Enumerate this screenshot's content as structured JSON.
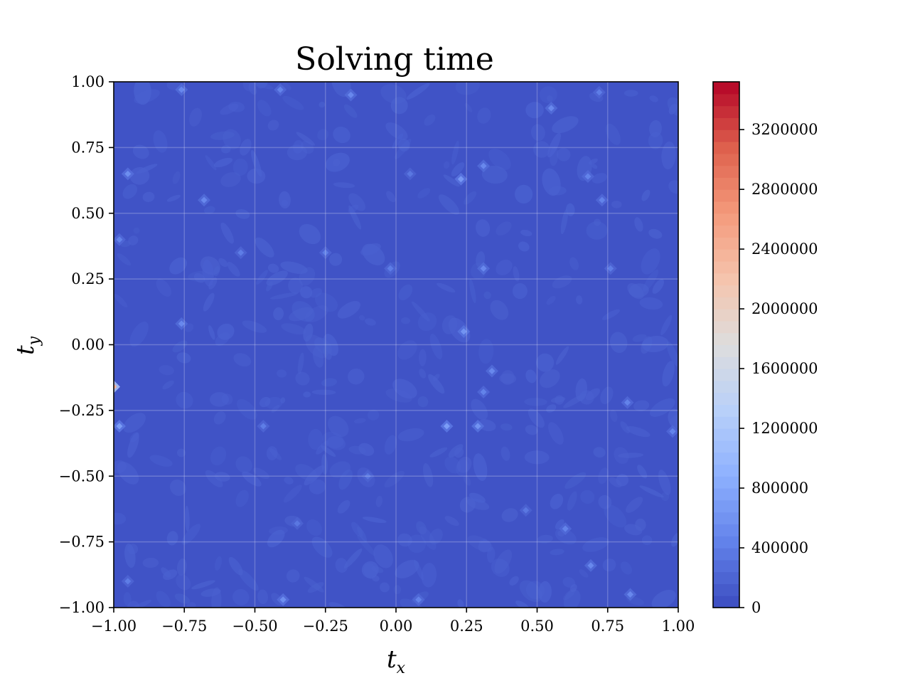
{
  "chart_data": {
    "type": "heatmap",
    "title": "Solving time",
    "xlabel": {
      "base": "t",
      "sub": "x"
    },
    "ylabel": {
      "base": "t",
      "sub": "y"
    },
    "xlim": [
      -1.0,
      1.0
    ],
    "ylim": [
      -1.0,
      1.0
    ],
    "x_ticks": [
      -1.0,
      -0.75,
      -0.5,
      -0.25,
      0.0,
      0.25,
      0.5,
      0.75,
      1.0
    ],
    "x_tick_labels": [
      "−1.00",
      "−0.75",
      "−0.50",
      "−0.25",
      "0.00",
      "0.25",
      "0.50",
      "0.75",
      "1.00"
    ],
    "y_ticks": [
      -1.0,
      -0.75,
      -0.5,
      -0.25,
      0.0,
      0.25,
      0.5,
      0.75,
      1.0
    ],
    "y_tick_labels": [
      "−1.00",
      "−0.75",
      "−0.50",
      "−0.25",
      "0.00",
      "0.25",
      "0.50",
      "0.75",
      "1.00"
    ],
    "grid": true,
    "colormap": "coolwarm",
    "colorbar": {
      "min": 0,
      "max": 3520000,
      "ticks": [
        0,
        400000,
        800000,
        1200000,
        1600000,
        2000000,
        2400000,
        2800000,
        3200000
      ],
      "tick_labels": [
        "0",
        "400000",
        "800000",
        "1200000",
        "1600000",
        "2000000",
        "2400000",
        "2800000",
        "3200000"
      ]
    },
    "background_value": 60000,
    "hotspots": [
      {
        "x": -1.0,
        "y": -0.16,
        "value": 2400000
      },
      {
        "x": -0.98,
        "y": -0.31,
        "value": 700000
      },
      {
        "x": 0.18,
        "y": -0.31,
        "value": 700000
      },
      {
        "x": 0.29,
        "y": -0.31,
        "value": 600000
      },
      {
        "x": 0.23,
        "y": 0.63,
        "value": 650000
      },
      {
        "x": 0.24,
        "y": 0.05,
        "value": 600000
      },
      {
        "x": 0.31,
        "y": 0.68,
        "value": 500000
      },
      {
        "x": -0.76,
        "y": 0.08,
        "value": 500000
      },
      {
        "x": -0.68,
        "y": 0.55,
        "value": 500000
      },
      {
        "x": -0.95,
        "y": 0.65,
        "value": 550000
      },
      {
        "x": -0.76,
        "y": 0.97,
        "value": 500000
      },
      {
        "x": -0.41,
        "y": 0.97,
        "value": 450000
      },
      {
        "x": -0.16,
        "y": 0.95,
        "value": 500000
      },
      {
        "x": 0.55,
        "y": 0.9,
        "value": 500000
      },
      {
        "x": 0.68,
        "y": 0.64,
        "value": 450000
      },
      {
        "x": 0.73,
        "y": 0.55,
        "value": 450000
      },
      {
        "x": 0.31,
        "y": 0.29,
        "value": 500000
      },
      {
        "x": 0.76,
        "y": 0.29,
        "value": 400000
      },
      {
        "x": 0.34,
        "y": -0.1,
        "value": 500000
      },
      {
        "x": 0.31,
        "y": -0.18,
        "value": 450000
      },
      {
        "x": 0.82,
        "y": -0.22,
        "value": 450000
      },
      {
        "x": 0.6,
        "y": -0.7,
        "value": 450000
      },
      {
        "x": 0.69,
        "y": -0.84,
        "value": 500000
      },
      {
        "x": 0.83,
        "y": -0.95,
        "value": 500000
      },
      {
        "x": -0.4,
        "y": -0.97,
        "value": 550000
      },
      {
        "x": 0.08,
        "y": -0.97,
        "value": 450000
      },
      {
        "x": 0.98,
        "y": -0.33,
        "value": 450000
      },
      {
        "x": -0.47,
        "y": -0.31,
        "value": 400000
      },
      {
        "x": -0.55,
        "y": 0.35,
        "value": 400000
      },
      {
        "x": -0.25,
        "y": 0.35,
        "value": 400000
      },
      {
        "x": -0.02,
        "y": 0.29,
        "value": 400000
      },
      {
        "x": -0.98,
        "y": 0.4,
        "value": 450000
      },
      {
        "x": 0.72,
        "y": 0.96,
        "value": 400000
      },
      {
        "x": -0.95,
        "y": -0.9,
        "value": 400000
      },
      {
        "x": -0.1,
        "y": -0.5,
        "value": 350000
      },
      {
        "x": 0.46,
        "y": -0.63,
        "value": 350000
      },
      {
        "x": -0.35,
        "y": -0.68,
        "value": 350000
      },
      {
        "x": 0.05,
        "y": 0.65,
        "value": 350000
      }
    ]
  }
}
